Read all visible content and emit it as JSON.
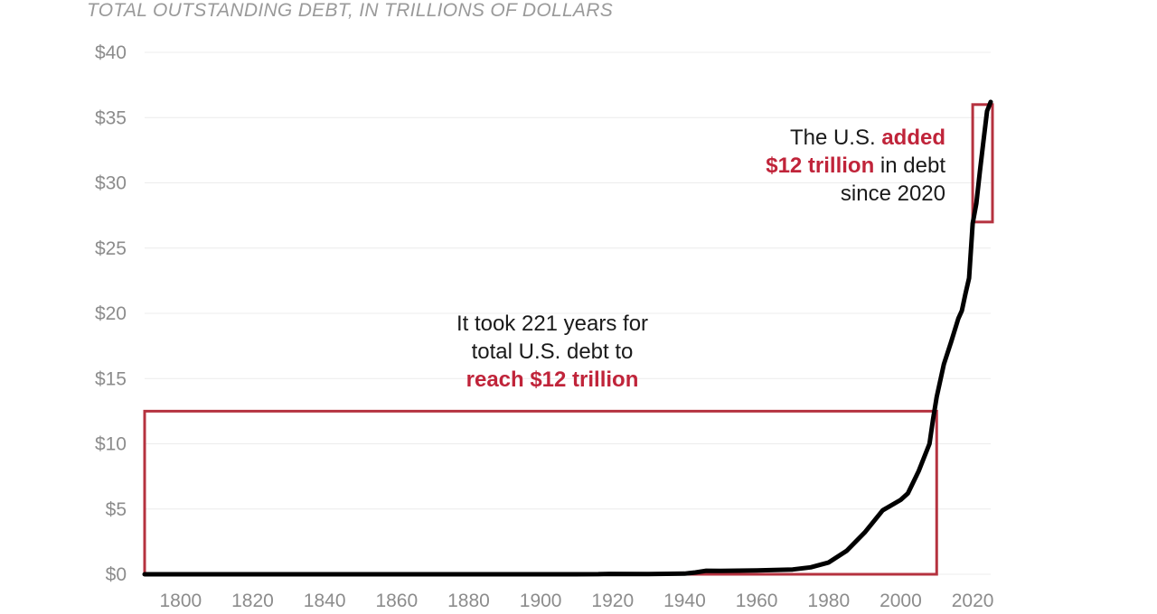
{
  "chart_data": {
    "type": "line",
    "title": "",
    "subtitle": "TOTAL OUTSTANDING DEBT, IN TRILLIONS OF DOLLARS",
    "xlabel": "",
    "ylabel": "",
    "xlim": [
      1790,
      2025
    ],
    "ylim": [
      0,
      40
    ],
    "yticks": [
      0,
      5,
      10,
      15,
      20,
      25,
      30,
      35,
      40
    ],
    "ytick_labels": [
      "$0",
      "$5",
      "$10",
      "$15",
      "$20",
      "$25",
      "$30",
      "$35",
      "$40"
    ],
    "xticks": [
      1800,
      1820,
      1840,
      1860,
      1880,
      1900,
      1920,
      1940,
      1960,
      1980,
      2000,
      2020
    ],
    "xtick_labels": [
      "1800",
      "1820",
      "1840",
      "1860",
      "1880",
      "1900",
      "1920",
      "1940",
      "1960",
      "1980",
      "2000",
      "2020"
    ],
    "grid": true,
    "legend": "none",
    "series": [
      {
        "color": "#000000",
        "x": [
          1790,
          1800,
          1820,
          1840,
          1860,
          1865,
          1880,
          1900,
          1916,
          1919,
          1930,
          1940,
          1943,
          1946,
          1950,
          1960,
          1970,
          1975,
          1980,
          1985,
          1990,
          1995,
          2000,
          2002,
          2005,
          2008,
          2009,
          2010,
          2012,
          2014,
          2016,
          2017,
          2018,
          2019,
          2020,
          2021,
          2022,
          2023,
          2024,
          2025
        ],
        "y": [
          0,
          0,
          0,
          0,
          0,
          0.003,
          0.002,
          0.001,
          0.004,
          0.03,
          0.02,
          0.05,
          0.14,
          0.27,
          0.26,
          0.29,
          0.37,
          0.53,
          0.91,
          1.8,
          3.2,
          4.9,
          5.7,
          6.2,
          7.9,
          10.0,
          11.9,
          13.6,
          16.1,
          17.8,
          19.6,
          20.2,
          21.5,
          22.7,
          26.9,
          28.4,
          30.9,
          33.2,
          35.5,
          36.2
        ]
      }
    ],
    "annotations": [
      {
        "lines": [
          [
            {
              "text": "It took 221 years for",
              "highlight": false
            }
          ],
          [
            {
              "text": "total U.S. debt to",
              "highlight": false
            }
          ],
          [
            {
              "text": "reach $12 trillion",
              "highlight": true
            }
          ]
        ],
        "box": {
          "x": [
            1790,
            2010
          ],
          "y": [
            0,
            12.5
          ]
        },
        "box_color": "#b5323f"
      },
      {
        "lines": [
          [
            {
              "text": "The U.S. ",
              "highlight": false
            },
            {
              "text": "added",
              "highlight": true
            }
          ],
          [
            {
              "text": "$12 trillion",
              "highlight": true
            },
            {
              "text": " in debt",
              "highlight": false
            }
          ],
          [
            {
              "text": "since 2020",
              "highlight": false
            }
          ]
        ],
        "box": {
          "x": [
            2020,
            2025.5
          ],
          "y": [
            27,
            36
          ]
        },
        "box_color": "#b5323f"
      }
    ],
    "highlight_color": "#c0243a"
  }
}
